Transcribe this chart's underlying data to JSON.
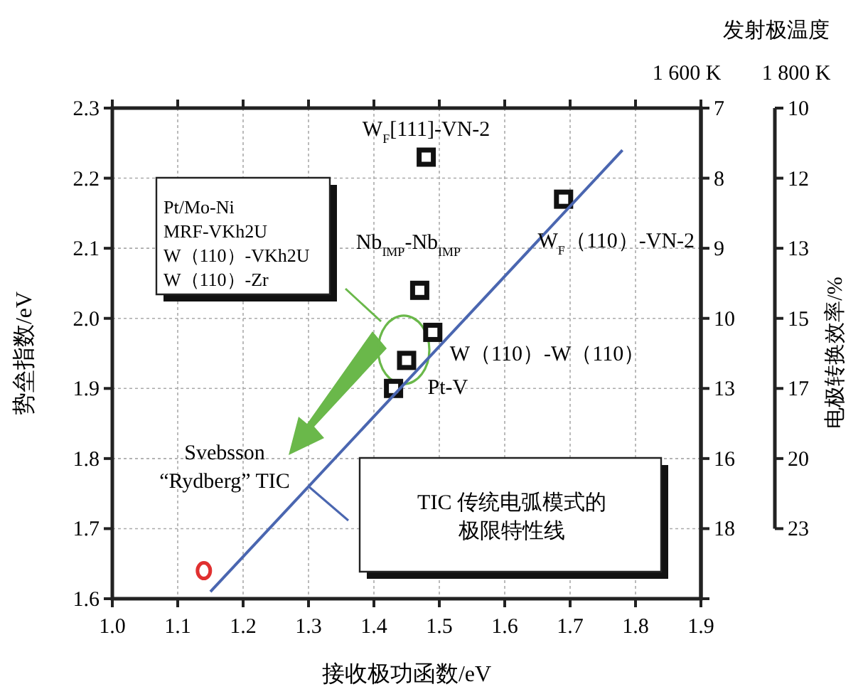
{
  "chart_data": {
    "type": "scatter",
    "xlabel": "接收极功函数/eV",
    "ylabel": "势垒指数/eV",
    "y2label": "1 600 K",
    "y3label": "1 800 K",
    "xlim": [
      1.0,
      1.9
    ],
    "xticks": [
      {
        "value": 1.0,
        "label": "1.0"
      },
      1.1,
      1.2,
      1.3,
      1.4,
      1.5,
      1.6,
      1.7,
      1.8,
      1.9
    ],
    "ylim": [
      1.6,
      2.3
    ],
    "yticks": [
      1.6,
      1.7,
      1.8,
      1.9,
      {
        "value": 2.0,
        "label": "2.0"
      },
      2.1,
      2.2,
      2.3
    ],
    "y2_categories": [
      "7",
      "8",
      "9",
      "10",
      "13",
      "16",
      "18",
      null
    ],
    "grid": true,
    "series": [
      {
        "type": "scatter",
        "marker": "square",
        "color": "#111111",
        "x": [
          1.48,
          1.69,
          1.47,
          1.49,
          1.45,
          1.43
        ],
        "values": [
          2.23,
          2.17,
          2.04,
          1.98,
          1.94,
          1.9
        ]
      },
      {
        "type": "scatter",
        "marker": "circle",
        "color": "#e03030",
        "x": [
          1.14
        ],
        "values": [
          1.64
        ]
      },
      {
        "type": "line",
        "marker": "none",
        "color": "#4a66b0",
        "x": [
          1.15,
          1.78
        ],
        "values": [
          1.61,
          2.24
        ]
      }
    ],
    "annotations": [
      {
        "text": "W$_{F}$[111]-VN-2",
        "x": 1.48,
        "y": 2.23
      },
      {
        "text": "W$_{F}$（110）-VN-2",
        "x": 1.69,
        "y": 2.17
      },
      {
        "text": "Nb$_{IMP}$-Nb$_{IMP}$",
        "x": 1.47,
        "y": 2.04
      },
      {
        "text": "W（110）-W（110）",
        "x": 1.49,
        "y": 1.98
      },
      {
        "text": "Pt-V",
        "x": 1.43,
        "y": 1.9
      },
      "Svebsson\n“Rydberg” TIC",
      "Pt/Mo-Ni\nMRF-VKh2U\nW（110）-VKh2U\nW（110）-Zr",
      "TIC 传统电弧模式的极限特性线",
      "发射极温度",
      "电极转换效率/%",
      "10",
      "12",
      "13",
      "15",
      "17",
      "20",
      "23"
    ]
  }
}
